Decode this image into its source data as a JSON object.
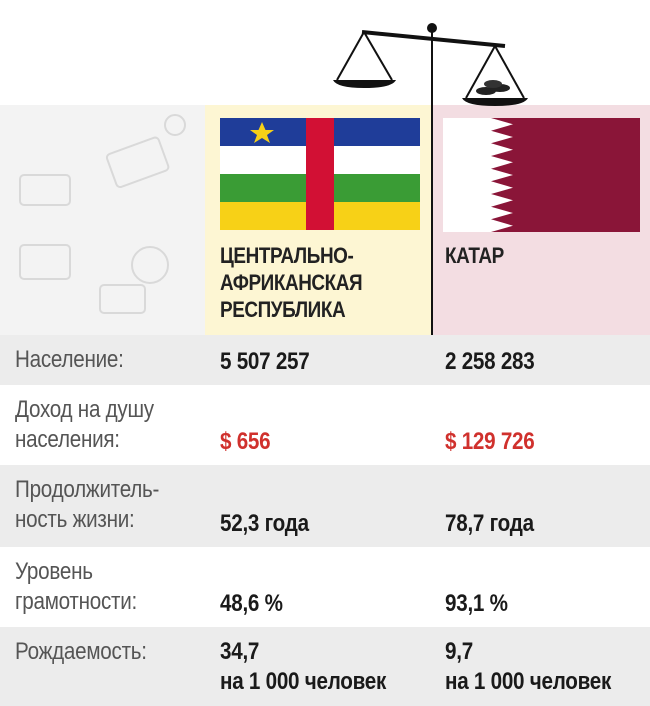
{
  "countries": [
    {
      "name": [
        "ЦЕНТРАЛЬНО-",
        "АФРИКАНСКАЯ",
        "РЕСПУБЛИКА"
      ]
    },
    {
      "name": [
        "КАТАР"
      ]
    }
  ],
  "rows": [
    {
      "label": [
        "Население:"
      ],
      "values": [
        [
          "5 507 257"
        ],
        [
          "2 258 283"
        ]
      ]
    },
    {
      "label": [
        "Доход на душу",
        "населения:"
      ],
      "values": [
        [
          "$ 656"
        ],
        [
          "$ 129 726"
        ]
      ],
      "highlight": true
    },
    {
      "label": [
        "Продолжитель-",
        "ность жизни:"
      ],
      "values": [
        [
          "52,3 года"
        ],
        [
          "78,7 года"
        ]
      ]
    },
    {
      "label": [
        "Уровень",
        "грамотности:"
      ],
      "values": [
        [
          "48,6 %"
        ],
        [
          "93,1 %"
        ]
      ]
    },
    {
      "label": [
        "Рождаемость:"
      ],
      "values": [
        [
          "34,7",
          "на 1 000 человек"
        ],
        [
          "9,7",
          "на 1 000 человек"
        ]
      ]
    }
  ]
}
